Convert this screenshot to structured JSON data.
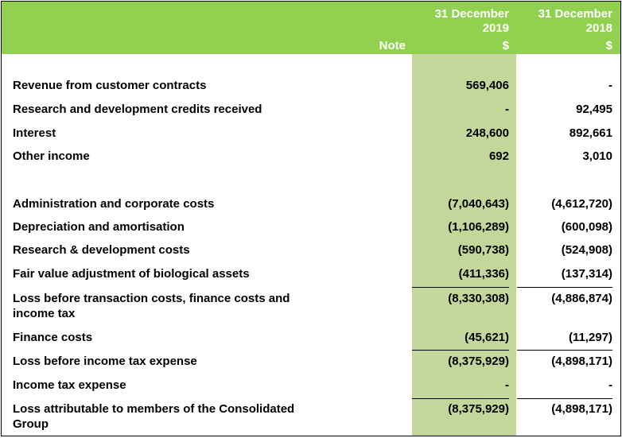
{
  "header": {
    "note_label": "Note",
    "col2019": {
      "line1": "31 December",
      "line2": "2019",
      "unit": "$"
    },
    "col2018": {
      "line1": "31 December",
      "line2": "2018",
      "unit": "$"
    }
  },
  "colors": {
    "header_band": "#92d050",
    "column_2019_fill": "#c4d79b",
    "header_text": "#ffffff"
  },
  "rows": [
    {
      "label": "Revenue from customer contracts",
      "v2019": "569,406",
      "v2018": "-"
    },
    {
      "label": "Research and development credits received",
      "v2019": "-",
      "v2018": "92,495"
    },
    {
      "label": "Interest",
      "v2019": "248,600",
      "v2018": "892,661"
    },
    {
      "label": "Other income",
      "v2019": "692",
      "v2018": "3,010"
    },
    {
      "label": "Administration and corporate costs",
      "v2019": "(7,040,643)",
      "v2018": "(4,612,720)"
    },
    {
      "label": "Depreciation and amortisation",
      "v2019": "(1,106,289)",
      "v2018": "(600,098)"
    },
    {
      "label": "Research & development costs",
      "v2019": "(590,738)",
      "v2018": "(524,908)"
    },
    {
      "label": "Fair value adjustment of biological assets",
      "v2019": "(411,336)",
      "v2018": "(137,314)"
    },
    {
      "label": "Loss before transaction costs, finance costs and",
      "label2": "income tax",
      "v2019": "(8,330,308)",
      "v2018": "(4,886,874)"
    },
    {
      "label": "Finance costs",
      "v2019": "(45,621)",
      "v2018": "(11,297)"
    },
    {
      "label": "Loss before income tax expense",
      "v2019": "(8,375,929)",
      "v2018": "(4,898,171)"
    },
    {
      "label": "Income tax expense",
      "v2019": "-",
      "v2018": "-"
    },
    {
      "label": "Loss attributable to members of the Consolidated",
      "label2": "Group",
      "v2019": "(8,375,929)",
      "v2018": "(4,898,171)"
    }
  ]
}
